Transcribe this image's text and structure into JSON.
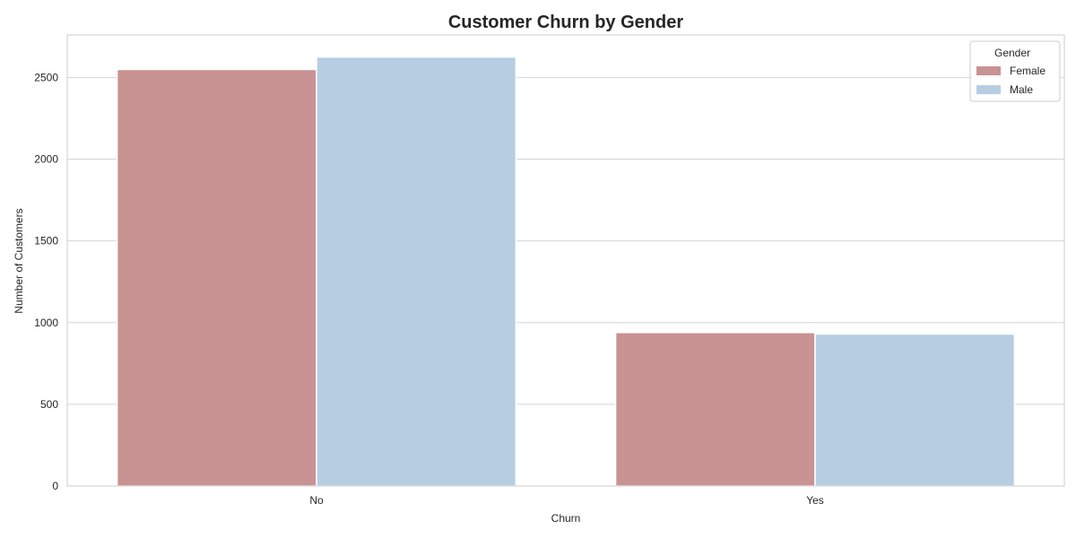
{
  "chart_data": {
    "type": "bar",
    "title": "Customer Churn by Gender",
    "xlabel": "Churn",
    "ylabel": "Number of Customers",
    "categories": [
      "No",
      "Yes"
    ],
    "series": [
      {
        "name": "Female",
        "values": [
          2549,
          939
        ]
      },
      {
        "name": "Male",
        "values": [
          2625,
          930
        ]
      }
    ],
    "colors": {
      "Female": "#c99293",
      "Male": "#b7cde2"
    },
    "ylim": [
      0,
      2760
    ],
    "yticks": [
      0,
      500,
      1000,
      1500,
      2000,
      2500
    ],
    "grid": "y",
    "legend": {
      "title": "Gender",
      "placement": "top-right"
    }
  }
}
